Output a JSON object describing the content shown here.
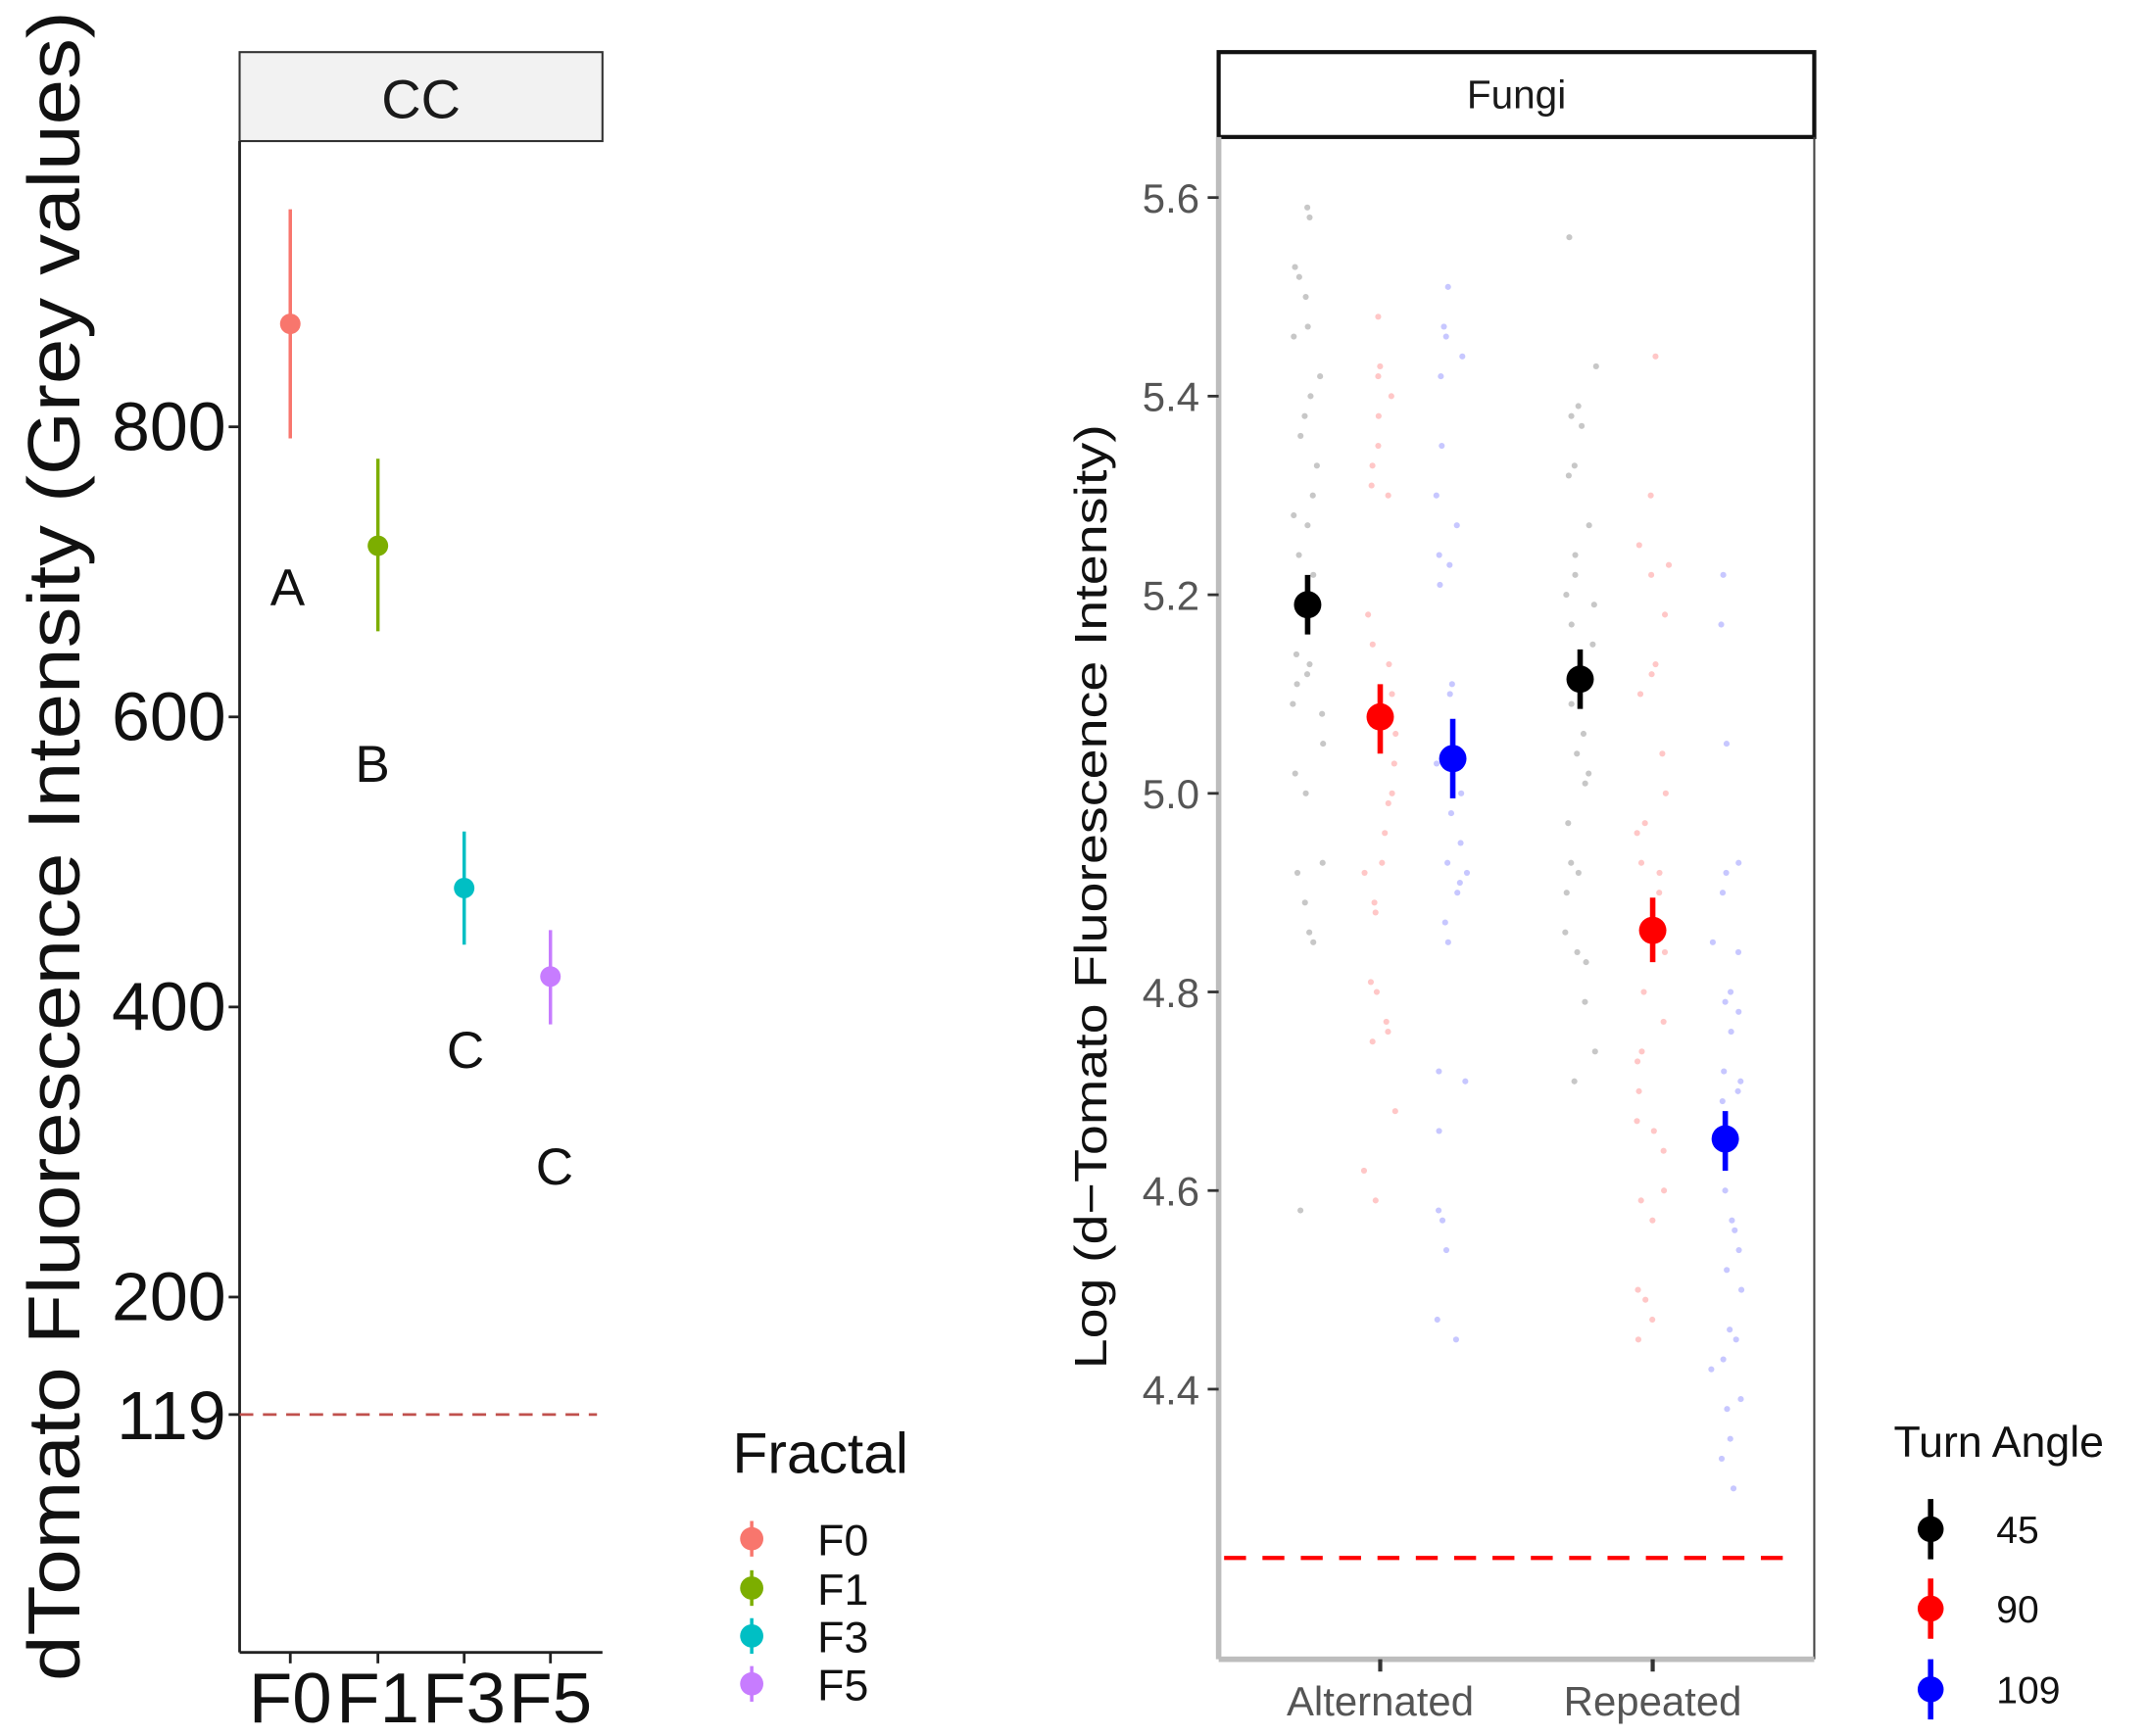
{
  "chart_data": [
    {
      "type": "scatter",
      "strip_label": "CC",
      "ylabel": "dTomato Fluorescence Intensity (Grey values)",
      "xlabel": "",
      "categories": [
        "F0",
        "F1",
        "F3",
        "F5"
      ],
      "yticks": [
        200,
        400,
        600,
        800
      ],
      "extra_ytick": 119,
      "ylim": [
        -45,
        997
      ],
      "reference_line": {
        "value": 119,
        "style": "dashed",
        "color": "#C0504D"
      },
      "points": [
        {
          "category": "F0",
          "mean": 871,
          "lower": 792,
          "upper": 950,
          "letter": "A",
          "color": "#F8766D"
        },
        {
          "category": "F1",
          "mean": 718,
          "lower": 659,
          "upper": 778,
          "letter": "B",
          "color": "#7CAE00"
        },
        {
          "category": "F3",
          "mean": 482,
          "lower": 443,
          "upper": 521,
          "letter": "C",
          "color": "#00BFC4"
        },
        {
          "category": "F5",
          "mean": 421,
          "lower": 388,
          "upper": 453,
          "letter": "C",
          "color": "#C77CFF"
        }
      ],
      "legend": {
        "title": "Fractal",
        "placement": "right-bottom",
        "entries": [
          "F0",
          "F1",
          "F3",
          "F5"
        ]
      },
      "grid": false
    },
    {
      "type": "scatter",
      "strip_label": "Fungi",
      "ylabel": "Log (d−Tomato Fluorescence Intensity)",
      "xlabel": "",
      "categories": [
        "Alternated",
        "Repeated"
      ],
      "yticks": [
        4.4,
        4.6,
        4.8,
        5.0,
        5.2,
        5.4,
        5.6
      ],
      "ytick_labels": [
        "4.4",
        "4.6",
        "4.8",
        "5.0",
        "5.2",
        "5.4",
        "5.6"
      ],
      "ylim": [
        4.128,
        5.661
      ],
      "reference_line": {
        "value": 4.23,
        "style": "dashed",
        "color": "#FF0000"
      },
      "legend": {
        "title": "Turn Angle",
        "placement": "right-bottom",
        "entries": [
          "45",
          "90",
          "109"
        ]
      },
      "colors": {
        "45": "#000000",
        "90": "#FF0000",
        "109": "#0000FF"
      },
      "grid": false,
      "series": [
        {
          "name": "45",
          "summary": [
            {
              "category": "Alternated",
              "mean": 5.19,
              "lower": 5.16,
              "upper": 5.22
            },
            {
              "category": "Repeated",
              "mean": 5.115,
              "lower": 5.085,
              "upper": 5.145
            }
          ],
          "raw": {
            "Alternated": [
              5.59,
              5.58,
              5.53,
              5.52,
              5.5,
              5.47,
              5.46,
              5.42,
              5.4,
              5.38,
              5.36,
              5.33,
              5.3,
              5.28,
              5.27,
              5.24,
              5.22,
              5.14,
              5.13,
              5.12,
              5.11,
              5.09,
              5.08,
              5.05,
              5.02,
              5.0,
              4.93,
              4.92,
              4.89,
              4.86,
              4.85,
              4.58
            ],
            "Repeated": [
              5.56,
              5.43,
              5.39,
              5.38,
              5.37,
              5.33,
              5.32,
              5.27,
              5.24,
              5.22,
              5.2,
              5.19,
              5.17,
              5.15,
              5.11,
              5.09,
              5.06,
              5.04,
              5.02,
              5.01,
              4.97,
              4.93,
              4.92,
              4.9,
              4.86,
              4.84,
              4.83,
              4.79,
              4.74,
              4.71
            ]
          }
        },
        {
          "name": "90",
          "summary": [
            {
              "category": "Alternated",
              "mean": 5.077,
              "lower": 5.04,
              "upper": 5.11
            },
            {
              "category": "Repeated",
              "mean": 4.862,
              "lower": 4.83,
              "upper": 4.895
            }
          ],
          "raw": {
            "Alternated": [
              5.48,
              5.43,
              5.42,
              5.4,
              5.38,
              5.35,
              5.33,
              5.31,
              5.3,
              5.18,
              5.15,
              5.13,
              5.1,
              5.06,
              5.03,
              5.0,
              4.99,
              4.96,
              4.93,
              4.92,
              4.89,
              4.88,
              4.81,
              4.8,
              4.77,
              4.76,
              4.75,
              4.68,
              4.62,
              4.59
            ],
            "Repeated": [
              5.44,
              5.3,
              5.25,
              5.23,
              5.22,
              5.18,
              5.13,
              5.12,
              5.1,
              5.04,
              5.0,
              4.97,
              4.96,
              4.93,
              4.92,
              4.9,
              4.87,
              4.84,
              4.8,
              4.77,
              4.74,
              4.73,
              4.7,
              4.67,
              4.66,
              4.64,
              4.6,
              4.59,
              4.57,
              4.5,
              4.49,
              4.47,
              4.45
            ]
          }
        },
        {
          "name": "109",
          "summary": [
            {
              "category": "Alternated",
              "mean": 5.035,
              "lower": 4.995,
              "upper": 5.075
            },
            {
              "category": "Repeated",
              "mean": 4.652,
              "lower": 4.62,
              "upper": 4.68
            }
          ],
          "raw": {
            "Alternated": [
              5.51,
              5.47,
              5.46,
              5.44,
              5.42,
              5.35,
              5.3,
              5.27,
              5.24,
              5.23,
              5.21,
              5.11,
              5.1,
              5.03,
              5.0,
              4.98,
              4.95,
              4.93,
              4.92,
              4.91,
              4.9,
              4.87,
              4.85,
              4.72,
              4.71,
              4.66,
              4.58,
              4.57,
              4.54,
              4.47,
              4.45
            ],
            "Repeated": [
              5.22,
              5.17,
              5.05,
              4.93,
              4.92,
              4.9,
              4.85,
              4.84,
              4.8,
              4.79,
              4.78,
              4.76,
              4.72,
              4.71,
              4.7,
              4.69,
              4.6,
              4.57,
              4.56,
              4.54,
              4.52,
              4.5,
              4.46,
              4.45,
              4.43,
              4.42,
              4.39,
              4.38,
              4.35,
              4.33,
              4.3
            ]
          }
        }
      ]
    }
  ]
}
